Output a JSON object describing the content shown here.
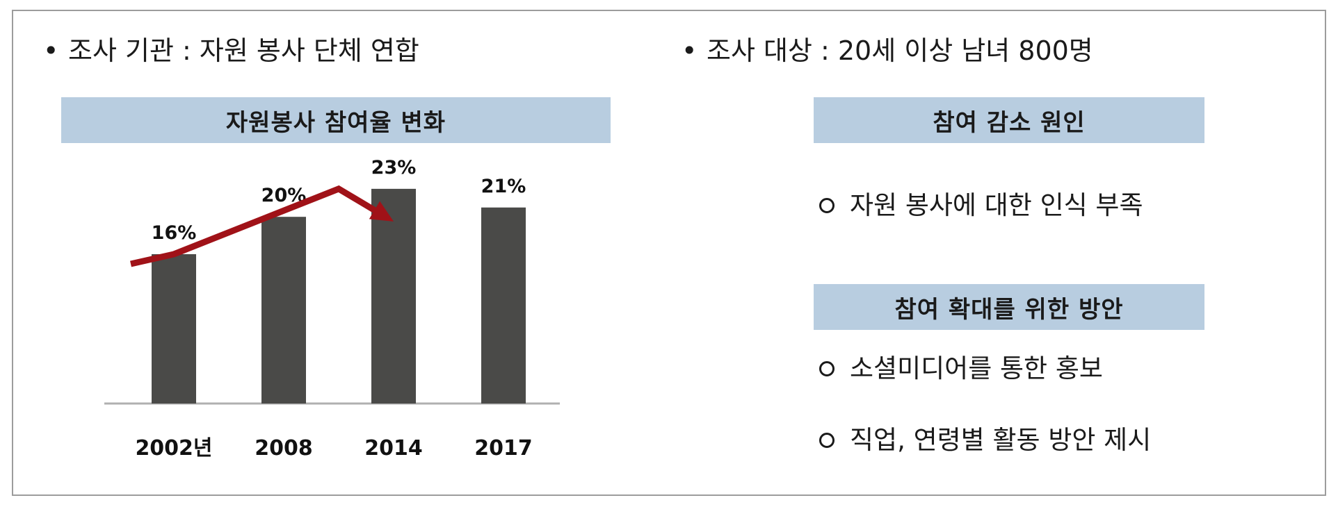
{
  "survey": {
    "org_label": "조사 기관 : 자원 봉사 단체 연합",
    "target_label": "조사 대상 : 20세 이상 남녀 800명",
    "bullet": "•"
  },
  "panels": {
    "chart_header": "자원봉사 참여율 변화",
    "decline_header": "참여 감소 원인",
    "decline_items": [
      "자원 봉사에 대한 인식 부족"
    ],
    "expand_header": "참여 확대를 위한 방안",
    "expand_items": [
      "소셜미디어를 통한 홍보",
      "직업, 연령별 활동 방안 제시"
    ]
  },
  "colors": {
    "bar": "#4a4a48",
    "arrow": "#a01218",
    "header_bg": "#b8cde0",
    "axis": "#b0b0b0"
  },
  "chart_data": {
    "type": "bar",
    "title": "자원봉사 참여율 변화",
    "categories": [
      "2002년",
      "2008",
      "2014",
      "2017"
    ],
    "values": [
      16,
      20,
      23,
      21
    ],
    "data_labels": [
      "16%",
      "20%",
      "23%",
      "21%"
    ],
    "unit": "%",
    "ylim": [
      0,
      25
    ],
    "grid": false,
    "trend_arrow": {
      "description": "rise then fall",
      "points": [
        [
          0,
          16
        ],
        [
          1.5,
          23
        ],
        [
          2,
          19.5
        ]
      ]
    }
  }
}
